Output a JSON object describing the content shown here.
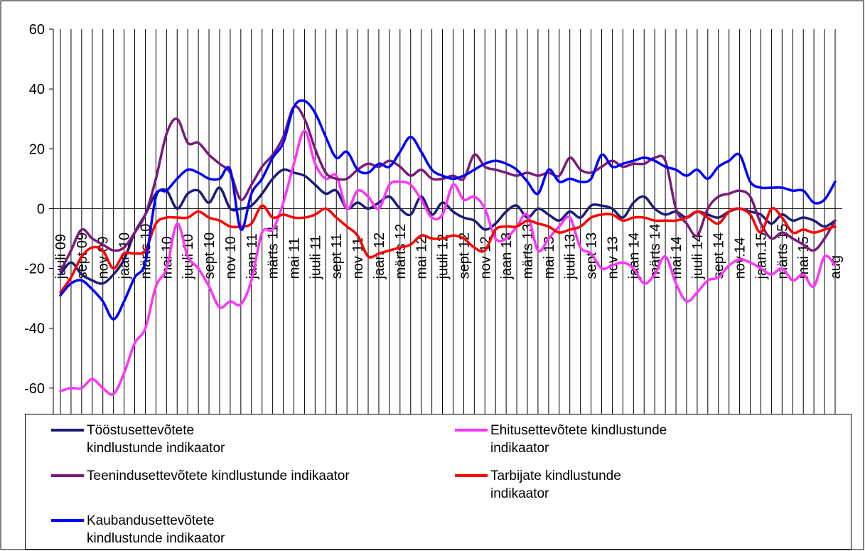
{
  "chart_data": {
    "type": "line",
    "categories": [
      "juuli 09",
      null,
      "sept 09",
      null,
      "nov 09",
      null,
      "jaan 10",
      null,
      "märts 10",
      null,
      "mai 10",
      null,
      "juuli 10",
      null,
      "sept 10",
      null,
      "nov 10",
      null,
      "jaan 11",
      null,
      "märts 11",
      null,
      "mai 11",
      null,
      "juuli 11",
      null,
      "sept 11",
      null,
      "nov 11",
      null,
      "jaan 12",
      null,
      "märts 12",
      null,
      "mai 12",
      null,
      "juuli 12",
      null,
      "sept 12",
      null,
      "nov 12",
      null,
      "jaan 13",
      null,
      "märts 13",
      null,
      "mai 13",
      null,
      "juuli 13",
      null,
      "sept 13",
      null,
      "nov 13",
      null,
      "jaan 14",
      null,
      "märts 14",
      null,
      "mai 14",
      null,
      "juuli 14",
      null,
      "sept 14",
      null,
      "nov.14",
      null,
      "jaan.15",
      null,
      "märts 15",
      null,
      "mai 15",
      null,
      null,
      "aug"
    ],
    "series": [
      {
        "name": "Tööstusettevõtete kindlustunde indikaator",
        "color": "#1c1c78",
        "values": [
          -22,
          -18,
          -22,
          -24,
          -25,
          -22,
          -17,
          -8,
          -2,
          5,
          6,
          0,
          5,
          6,
          2,
          7,
          0,
          0,
          1,
          5,
          10,
          13,
          12,
          11,
          8,
          5,
          6,
          0,
          2,
          0,
          2,
          4,
          0,
          -2,
          4,
          -2,
          2,
          -1,
          -3,
          -4,
          -7,
          -5,
          -1,
          1,
          -3,
          0,
          -2,
          -4,
          -1,
          -3,
          1,
          1,
          0,
          -3,
          2,
          4,
          0,
          -2,
          -1,
          -3,
          -1,
          -2,
          -3,
          -1,
          0,
          -1,
          -2,
          -5,
          -2,
          -4,
          -3,
          -4,
          -6,
          -4
        ]
      },
      {
        "name": "Ehitusettevõtete kindlustunde indikaator",
        "color": "#ff33ff",
        "values": [
          -61,
          -60,
          -60,
          -57,
          -60,
          -62,
          -55,
          -45,
          -40,
          -26,
          -20,
          -5,
          -16,
          -20,
          -26,
          -33,
          -31,
          -32,
          -24,
          -8,
          -7,
          2,
          15,
          26,
          15,
          10,
          11,
          0,
          6,
          4,
          0,
          8,
          9,
          8,
          3,
          -3,
          -2,
          8,
          3,
          4,
          0,
          -10,
          -10,
          -6,
          -2,
          -14,
          -10,
          -6,
          -3,
          -13,
          -15,
          -20,
          -19,
          -18,
          -20,
          -25,
          -22,
          -16,
          -25,
          -31,
          -28,
          -24,
          -23,
          -19,
          -17,
          -18,
          -20,
          -22,
          -20,
          -24,
          -22,
          -26,
          -16,
          -19
        ]
      },
      {
        "name": "Teenindusettevõtete kindlustunde indikaator",
        "color": "#7b1a7b",
        "values": [
          -21,
          -14,
          -7,
          -10,
          -12,
          -14,
          -13,
          -8,
          -2,
          10,
          25,
          30,
          22,
          22,
          18,
          15,
          12,
          3,
          8,
          14,
          18,
          24,
          34,
          30,
          20,
          12,
          10,
          10,
          13,
          15,
          14,
          16,
          14,
          11,
          13,
          10,
          10,
          11,
          10,
          18,
          14,
          13,
          12,
          11,
          12,
          11,
          12,
          11,
          17,
          13,
          12,
          14,
          16,
          14,
          15,
          15,
          17,
          16,
          0,
          -5,
          -9,
          0,
          4,
          5,
          6,
          4,
          -5,
          -10,
          -8,
          -10,
          -12,
          -14,
          -10,
          -4
        ]
      },
      {
        "name": "Tarbijate kindlustunde indikaator",
        "color": "#ff0000",
        "values": [
          -28,
          -23,
          -16,
          -13,
          -14,
          -20,
          -15,
          -15,
          -14,
          -5,
          -3,
          -3,
          -3,
          -1,
          -3,
          -4,
          -6,
          -6,
          -5,
          1,
          -3,
          -2,
          -3,
          -3,
          -2,
          0,
          -3,
          -6,
          -9,
          -16,
          -15,
          -14,
          -13,
          -12,
          -9,
          -10,
          -10,
          -9,
          -10,
          -13,
          -14,
          -7,
          -6,
          -6,
          -4,
          -5,
          -6,
          -8,
          -7,
          -6,
          -3,
          -2,
          -2,
          -4,
          -3,
          -3,
          -4,
          -4,
          -4,
          -3,
          -1,
          -3,
          -5,
          -1,
          0,
          -2,
          -8,
          0,
          -3,
          -8,
          -7,
          -8,
          -7,
          -6
        ]
      },
      {
        "name": "Kaubandusettevõtete kindlustunde indikaator",
        "color": "#0000ff",
        "values": [
          -29,
          -25,
          -24,
          -27,
          -31,
          -37,
          -31,
          -23,
          -18,
          4,
          6,
          10,
          13,
          12,
          10,
          10,
          13,
          -7,
          5,
          10,
          17,
          22,
          34,
          36,
          32,
          24,
          17,
          19,
          13,
          12,
          15,
          14,
          19,
          24,
          19,
          13,
          11,
          10,
          11,
          13,
          15,
          16,
          15,
          13,
          9,
          5,
          13,
          9,
          10,
          9,
          10,
          18,
          14,
          15,
          16,
          17,
          16,
          14,
          13,
          11,
          13,
          10,
          14,
          16,
          18,
          9,
          7,
          7,
          7,
          6,
          6,
          2,
          3,
          9
        ]
      }
    ],
    "ylim": [
      -80,
      60
    ],
    "yticks": [
      -80,
      -60,
      -40,
      -20,
      0,
      20,
      40,
      60
    ]
  }
}
